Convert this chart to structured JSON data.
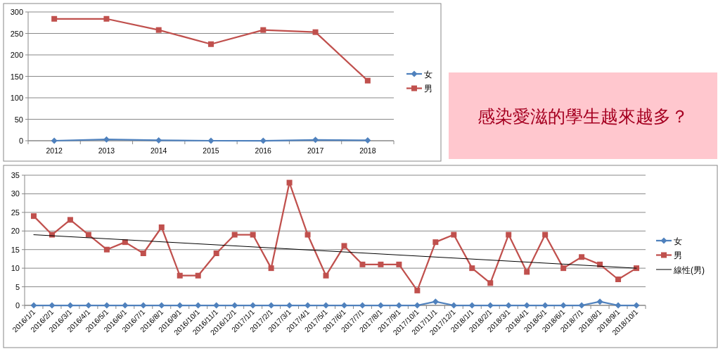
{
  "chart_data": [
    {
      "type": "line",
      "categories": [
        "2012",
        "2013",
        "2014",
        "2015",
        "2016",
        "2017",
        "2018"
      ],
      "series": [
        {
          "name": "女",
          "color": "#4f81bd",
          "marker": "diamond",
          "values": [
            0,
            3,
            1,
            0,
            0,
            2,
            1
          ]
        },
        {
          "name": "男",
          "color": "#c0504d",
          "marker": "square",
          "values": [
            284,
            284,
            258,
            225,
            258,
            253,
            140
          ]
        }
      ],
      "ylim": [
        0,
        300
      ],
      "yticks": [
        0,
        50,
        100,
        150,
        200,
        250,
        300
      ],
      "grid": "y",
      "legend": "right"
    },
    {
      "type": "line",
      "categories": [
        "2016/1/1",
        "2016/2/1",
        "2016/3/1",
        "2016/4/1",
        "2016/5/1",
        "2016/6/1",
        "2016/7/1",
        "2016/8/1",
        "2016/9/1",
        "2016/10/1",
        "2016/11/1",
        "2016/12/1",
        "2017/1/1",
        "2017/2/1",
        "2017/3/1",
        "2017/4/1",
        "2017/5/1",
        "2017/6/1",
        "2017/7/1",
        "2017/8/1",
        "2017/9/1",
        "2017/10/1",
        "2017/11/1",
        "2017/12/1",
        "2018/1/1",
        "2018/2/1",
        "2018/3/1",
        "2018/4/1",
        "2018/5/1",
        "2018/6/1",
        "2018/7/1",
        "2018/8/1",
        "2018/9/1",
        "2018/10/1"
      ],
      "series": [
        {
          "name": "女",
          "color": "#4f81bd",
          "marker": "diamond",
          "values": [
            0,
            0,
            0,
            0,
            0,
            0,
            0,
            0,
            0,
            0,
            0,
            0,
            0,
            0,
            0,
            0,
            0,
            0,
            0,
            0,
            0,
            0,
            1,
            0,
            0,
            0,
            0,
            0,
            0,
            0,
            0,
            1,
            0,
            0
          ]
        },
        {
          "name": "男",
          "color": "#c0504d",
          "marker": "square",
          "values": [
            24,
            19,
            23,
            19,
            15,
            17,
            14,
            21,
            8,
            8,
            14,
            19,
            19,
            10,
            33,
            19,
            8,
            16,
            11,
            11,
            11,
            4,
            17,
            19,
            10,
            6,
            19,
            9,
            19,
            10,
            13,
            11,
            7,
            10
          ]
        },
        {
          "name": "線性(男)",
          "type": "line",
          "color": "#000000",
          "marker": "none",
          "x": [
            "2016/1/1",
            "2018/10/1"
          ],
          "values": [
            19,
            10
          ]
        }
      ],
      "ylim": [
        0,
        35
      ],
      "yticks": [
        0,
        5,
        10,
        15,
        20,
        25,
        30,
        35
      ],
      "grid": "y",
      "legend": "right"
    },
    {
      "type": "other",
      "title": "感染愛滋的學生越來越多？"
    }
  ]
}
